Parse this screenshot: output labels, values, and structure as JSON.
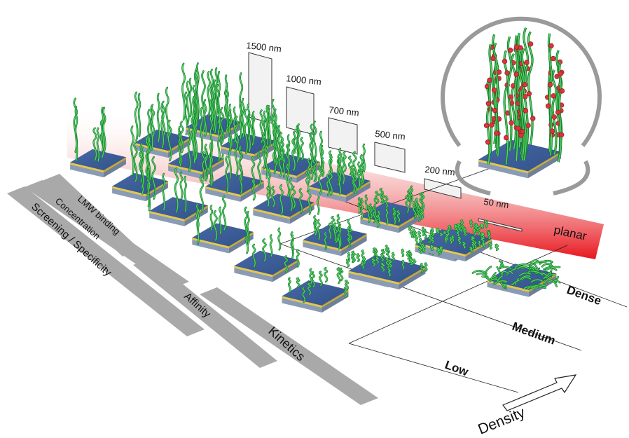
{
  "thickness_labels": [
    "1500 nm",
    "1000 nm",
    "700 nm",
    "500 nm",
    "200 nm",
    "50 nm",
    "planar"
  ],
  "density_labels": [
    "Low",
    "Medium",
    "Dense"
  ],
  "density_axis_label": "Density",
  "application_labels": [
    "LMW binding",
    "Concentration",
    "Screening / Specificity",
    "Affinity",
    "Kinetics"
  ],
  "colors": {
    "red_gradient": "#e8141c",
    "polymer": "#1fa03a",
    "polymer_light": "#5ad66a",
    "substrate_top": "#3b5a94",
    "substrate_side": "#2b416d",
    "gold_layer": "#e5c84a",
    "base_layer": "#8a9bb5",
    "application_bar": "#a9a9a9",
    "bead": "#d9343a"
  },
  "icons": [
    "density-arrow-icon",
    "zoom-detail-icon"
  ]
}
